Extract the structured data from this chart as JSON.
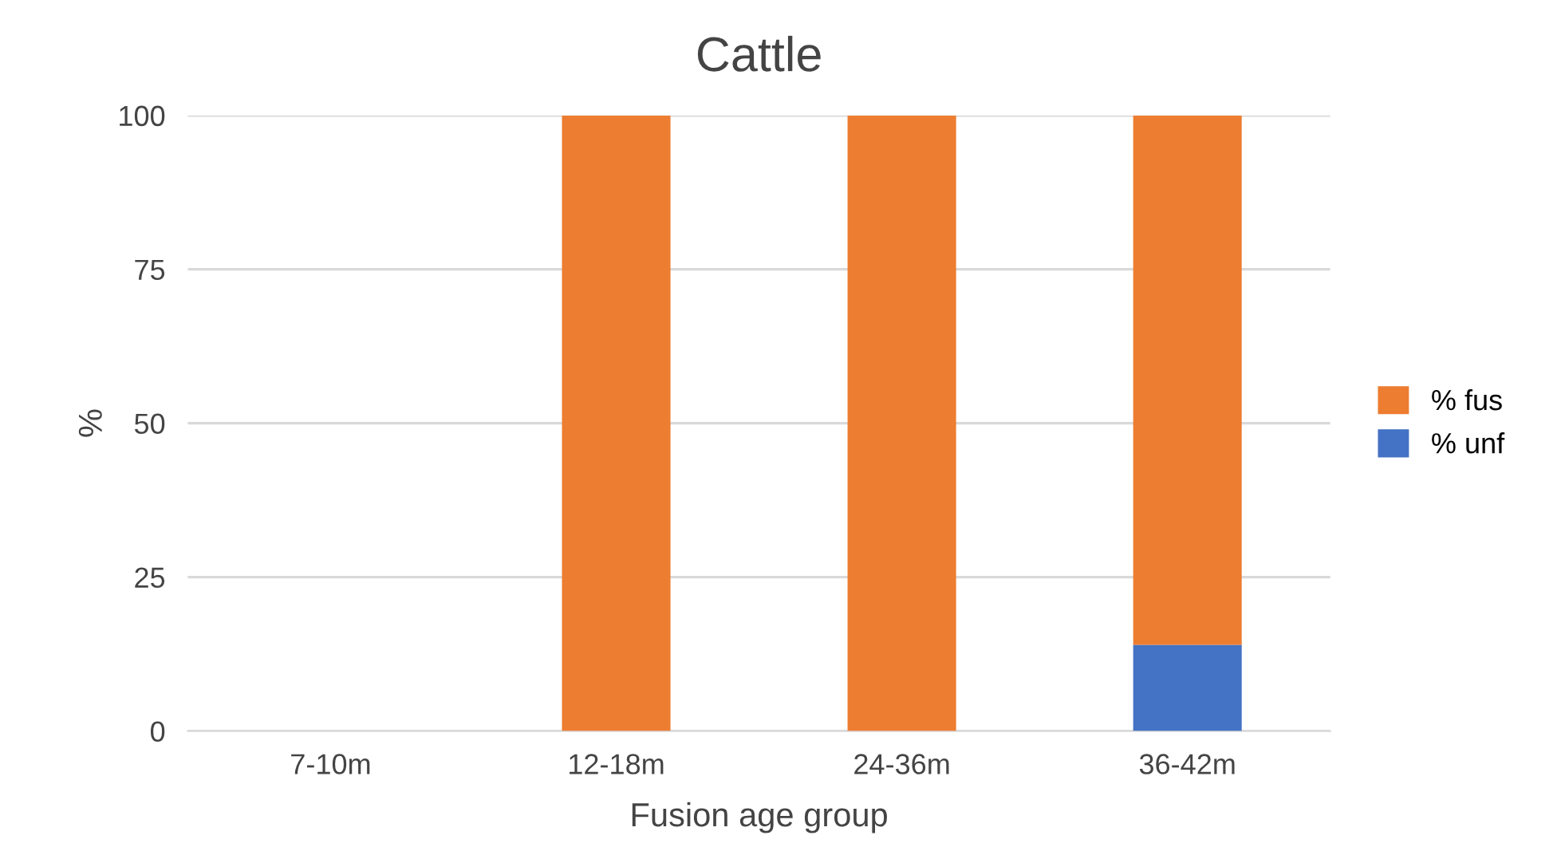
{
  "chart_data": {
    "type": "bar",
    "title": "Cattle",
    "xlabel": "Fusion age group",
    "ylabel": "%",
    "categories": [
      "7-10m",
      "12-18m",
      "24-36m",
      "36-42m"
    ],
    "stacked": true,
    "series": [
      {
        "name": "% unf",
        "color": "#4472c4",
        "values": [
          0,
          0,
          0,
          14
        ]
      },
      {
        "name": "% fus",
        "color": "#ed7d31",
        "values": [
          0,
          100,
          100,
          86
        ]
      }
    ],
    "ylim": [
      0,
      100
    ],
    "yticks": [
      0,
      25,
      50,
      75,
      100
    ],
    "grid": "y",
    "legend": "right"
  }
}
